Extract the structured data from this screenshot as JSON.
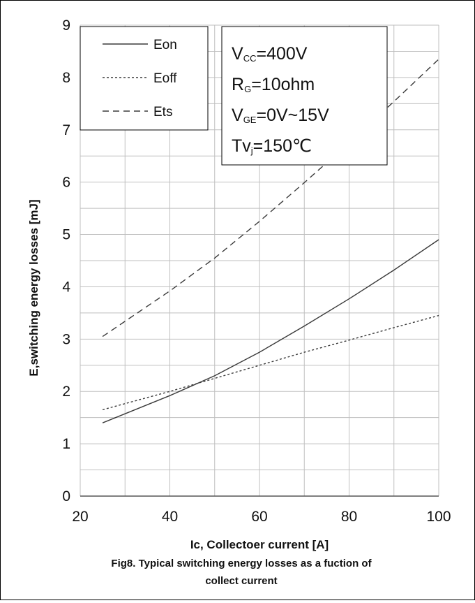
{
  "chart_data": {
    "type": "line",
    "xlabel": "Ic, Collectoer current [A]",
    "ylabel": "E,switching energy losses [mJ]",
    "caption_lines": [
      "Fig8. Typical switching energy losses as a fuction of",
      "collect current"
    ],
    "xlim": [
      20,
      100
    ],
    "ylim": [
      0,
      9
    ],
    "x_ticks": [
      "20",
      "40",
      "60",
      "80",
      "100"
    ],
    "y_ticks": [
      "0",
      "1",
      "2",
      "3",
      "4",
      "5",
      "6",
      "7",
      "8",
      "9"
    ],
    "grid": true,
    "legend_position": "top-left",
    "series": [
      {
        "name": "Eon",
        "dash": "solid",
        "x": [
          25,
          40,
          50,
          60,
          70,
          80,
          90,
          100
        ],
        "y": [
          1.4,
          1.92,
          2.3,
          2.75,
          3.25,
          3.77,
          4.32,
          4.9
        ]
      },
      {
        "name": "Eoff",
        "dash": "dotted",
        "x": [
          25,
          40,
          50,
          60,
          70,
          80,
          90,
          100
        ],
        "y": [
          1.65,
          2.0,
          2.25,
          2.5,
          2.75,
          2.98,
          3.22,
          3.45
        ]
      },
      {
        "name": "Ets",
        "dash": "dashed",
        "x": [
          25,
          40,
          50,
          60,
          70,
          80,
          90,
          100
        ],
        "y": [
          3.05,
          3.92,
          4.55,
          5.25,
          5.99,
          6.75,
          7.54,
          8.35
        ]
      }
    ],
    "conditions": [
      {
        "main": "V",
        "sub": "CC",
        "rest": "=400V"
      },
      {
        "main": "R",
        "sub": "G",
        "rest": "=10ohm"
      },
      {
        "main": "V",
        "sub": "GE",
        "rest": "=0V~15V"
      },
      {
        "main": "Tv",
        "sub": "j",
        "rest": "=150℃"
      }
    ],
    "colors": {
      "line": "#3a3a3a",
      "grid": "#bfbfbf"
    }
  }
}
